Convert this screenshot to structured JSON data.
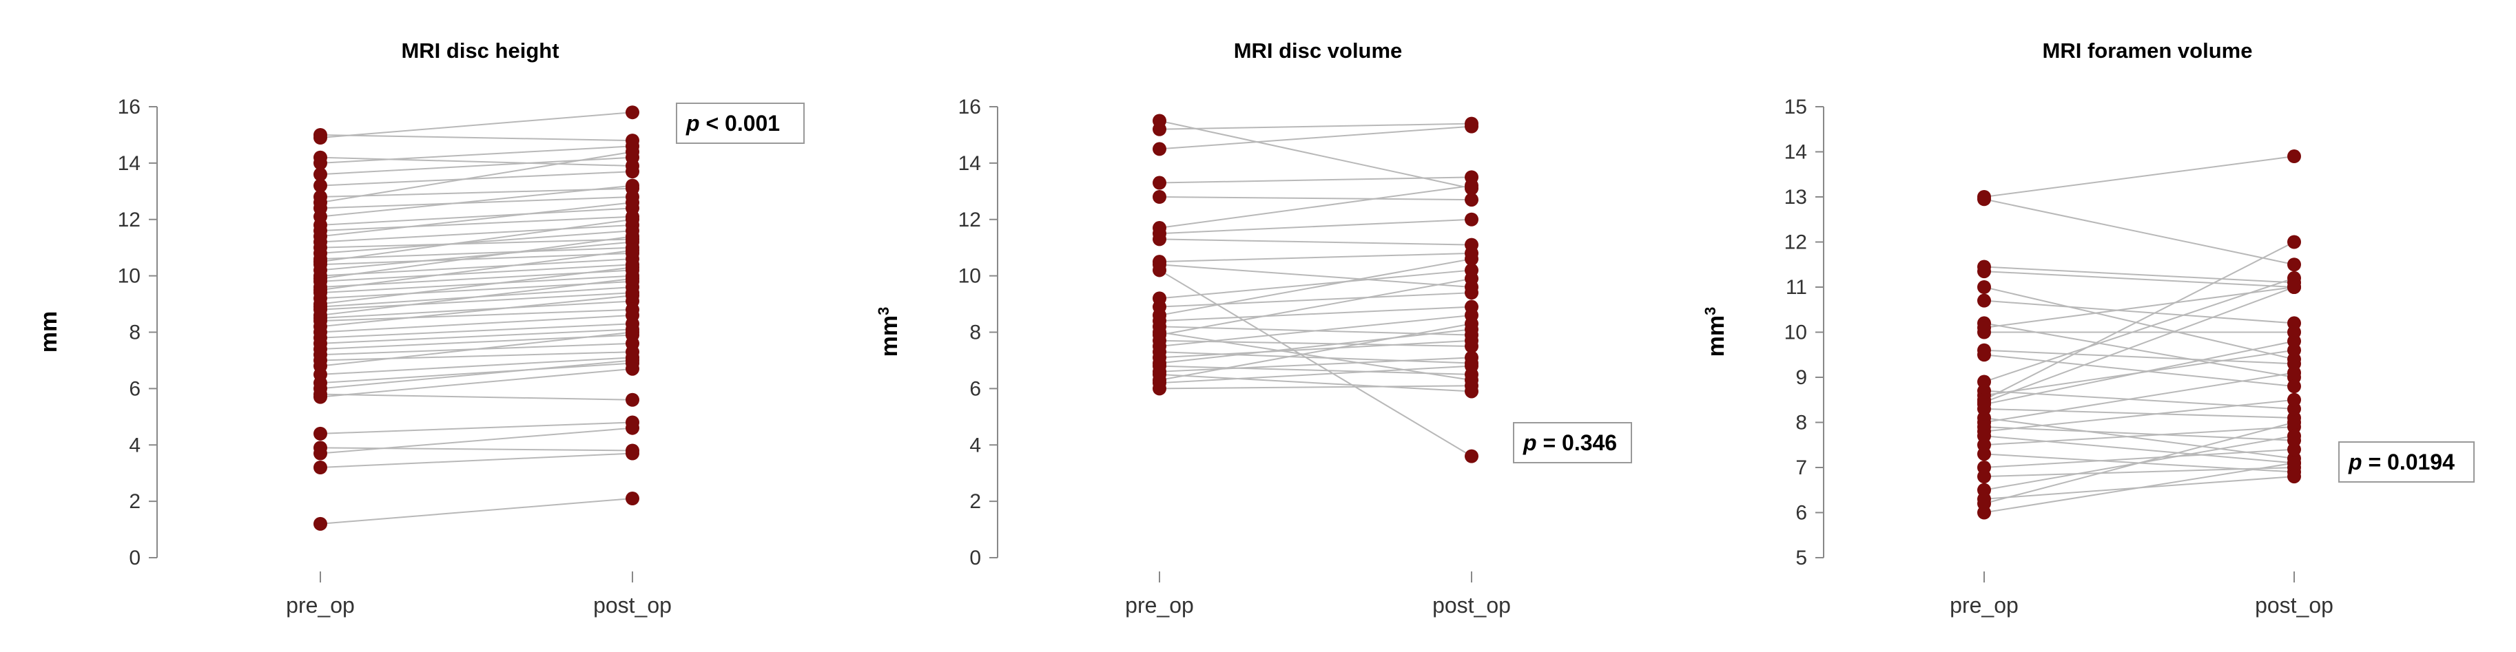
{
  "colors": {
    "marker": "#7b0a0a",
    "line": "#b8b8b8",
    "axis": "#888888",
    "text": "#333333"
  },
  "chart_data": [
    {
      "type": "scatter",
      "title": "MRI disc height",
      "xlabel": "",
      "ylabel": "mm",
      "ylabel_sup": "",
      "categories": [
        "pre_op",
        "post_op"
      ],
      "ylim": [
        0,
        16
      ],
      "yticks": [
        0,
        2,
        4,
        6,
        8,
        10,
        12,
        14,
        16
      ],
      "ytick_labels": [
        "0",
        "2",
        "4",
        "6",
        "8",
        "10",
        "12",
        "14",
        "16"
      ],
      "p_label": "p",
      "p_value": "< 0.001",
      "p_position": "top-right",
      "pairs": [
        [
          15.0,
          14.8
        ],
        [
          14.9,
          15.8
        ],
        [
          14.2,
          13.9
        ],
        [
          14.0,
          14.6
        ],
        [
          13.6,
          14.2
        ],
        [
          13.2,
          13.7
        ],
        [
          12.8,
          13.1
        ],
        [
          12.6,
          14.4
        ],
        [
          12.4,
          12.8
        ],
        [
          12.1,
          13.2
        ],
        [
          11.8,
          12.4
        ],
        [
          11.6,
          12.1
        ],
        [
          11.4,
          12.6
        ],
        [
          11.2,
          11.8
        ],
        [
          11.0,
          11.3
        ],
        [
          10.8,
          11.6
        ],
        [
          10.6,
          11.0
        ],
        [
          10.5,
          12.0
        ],
        [
          10.4,
          10.8
        ],
        [
          10.2,
          11.2
        ],
        [
          10.0,
          10.6
        ],
        [
          9.9,
          11.4
        ],
        [
          9.8,
          10.4
        ],
        [
          9.6,
          10.2
        ],
        [
          9.5,
          10.9
        ],
        [
          9.4,
          10.0
        ],
        [
          9.2,
          9.8
        ],
        [
          9.0,
          10.3
        ],
        [
          8.9,
          9.6
        ],
        [
          8.8,
          9.4
        ],
        [
          8.6,
          9.9
        ],
        [
          8.5,
          9.1
        ],
        [
          8.4,
          8.8
        ],
        [
          8.2,
          9.3
        ],
        [
          8.0,
          8.6
        ],
        [
          7.8,
          8.3
        ],
        [
          7.6,
          8.1
        ],
        [
          7.4,
          7.9
        ],
        [
          7.2,
          7.6
        ],
        [
          7.0,
          7.3
        ],
        [
          6.8,
          8.0
        ],
        [
          6.5,
          7.1
        ],
        [
          6.2,
          6.9
        ],
        [
          6.0,
          7.0
        ],
        [
          5.8,
          5.6
        ],
        [
          5.7,
          6.7
        ],
        [
          4.4,
          4.8
        ],
        [
          3.9,
          3.8
        ],
        [
          3.7,
          4.6
        ],
        [
          3.2,
          3.7
        ],
        [
          1.2,
          2.1
        ]
      ]
    },
    {
      "type": "scatter",
      "title": "MRI disc volume",
      "xlabel": "",
      "ylabel": "mm",
      "ylabel_sup": "3",
      "categories": [
        "pre_op",
        "post_op"
      ],
      "ylim": [
        0,
        16
      ],
      "yticks": [
        0,
        2,
        4,
        6,
        8,
        10,
        12,
        14,
        16
      ],
      "ytick_labels": [
        "0",
        "2",
        "4",
        "6",
        "8",
        "10",
        "12",
        "14",
        "16"
      ],
      "p_label": "p",
      "p_value": "= 0.346",
      "p_position": "bottom-right",
      "pairs": [
        [
          15.5,
          13.1
        ],
        [
          15.2,
          15.4
        ],
        [
          14.5,
          15.3
        ],
        [
          13.3,
          13.5
        ],
        [
          12.8,
          12.7
        ],
        [
          11.7,
          13.2
        ],
        [
          11.5,
          12.0
        ],
        [
          11.3,
          11.1
        ],
        [
          10.5,
          10.8
        ],
        [
          10.4,
          9.6
        ],
        [
          10.2,
          3.6
        ],
        [
          9.2,
          10.2
        ],
        [
          8.9,
          9.4
        ],
        [
          8.6,
          10.6
        ],
        [
          8.4,
          8.9
        ],
        [
          8.2,
          7.9
        ],
        [
          8.0,
          6.3
        ],
        [
          7.9,
          9.9
        ],
        [
          7.7,
          7.5
        ],
        [
          7.5,
          8.6
        ],
        [
          7.3,
          6.9
        ],
        [
          7.1,
          7.7
        ],
        [
          6.9,
          8.1
        ],
        [
          6.8,
          6.5
        ],
        [
          6.6,
          7.1
        ],
        [
          6.5,
          5.9
        ],
        [
          6.3,
          8.3
        ],
        [
          6.2,
          6.8
        ],
        [
          6.0,
          6.1
        ]
      ]
    },
    {
      "type": "scatter",
      "title": "MRI foramen volume",
      "xlabel": "",
      "ylabel": "mm",
      "ylabel_sup": "3",
      "categories": [
        "pre_op",
        "post_op"
      ],
      "ylim": [
        5,
        15
      ],
      "yticks": [
        5,
        6,
        7,
        8,
        9,
        10,
        11,
        12,
        13,
        14,
        15
      ],
      "ytick_labels": [
        "5",
        "6",
        "7",
        "8",
        "9",
        "10",
        "11",
        "12",
        "13",
        "14",
        "15"
      ],
      "p_label": "p",
      "p_value": "= 0.0194",
      "p_position": "bottom-right",
      "pairs": [
        [
          13.0,
          13.9
        ],
        [
          12.95,
          11.5
        ],
        [
          11.45,
          11.1
        ],
        [
          11.35,
          11.0
        ],
        [
          11.0,
          9.4
        ],
        [
          10.7,
          10.2
        ],
        [
          10.2,
          9.0
        ],
        [
          10.1,
          11.0
        ],
        [
          10.0,
          10.0
        ],
        [
          9.6,
          9.3
        ],
        [
          9.5,
          8.8
        ],
        [
          8.9,
          11.2
        ],
        [
          8.7,
          8.3
        ],
        [
          8.6,
          9.6
        ],
        [
          8.5,
          12.0
        ],
        [
          8.45,
          11.0
        ],
        [
          8.4,
          9.8
        ],
        [
          8.3,
          8.1
        ],
        [
          8.1,
          7.2
        ],
        [
          8.0,
          9.1
        ],
        [
          7.9,
          7.6
        ],
        [
          7.8,
          8.5
        ],
        [
          7.7,
          7.1
        ],
        [
          7.5,
          7.9
        ],
        [
          7.3,
          6.9
        ],
        [
          7.0,
          7.4
        ],
        [
          6.8,
          7.0
        ],
        [
          6.5,
          7.7
        ],
        [
          6.3,
          6.8
        ],
        [
          6.2,
          8.0
        ],
        [
          6.0,
          7.1
        ]
      ]
    }
  ]
}
